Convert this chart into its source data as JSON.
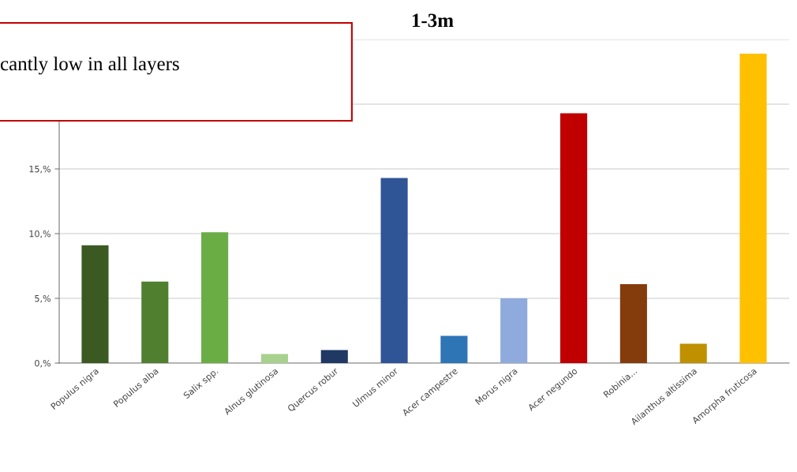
{
  "chart_data": {
    "type": "bar",
    "title": "1-3m",
    "categories": [
      "Populus nigra",
      "Populus alba",
      "Salix spp.",
      "Alnus glutinosa",
      "Quercus robur",
      "Ulmus minor",
      "Acer campestre",
      "Morus nigra",
      "Acer negundo",
      "Robinia...",
      "Ailanthus altissima",
      "Amorpha fruticosa"
    ],
    "values": [
      9.1,
      6.3,
      10.1,
      0.7,
      1.0,
      14.3,
      2.1,
      5.0,
      19.3,
      6.1,
      1.5,
      23.9
    ],
    "colors": [
      "#3a5a22",
      "#4f7f2f",
      "#6aad45",
      "#a9d18e",
      "#1f3864",
      "#2f5597",
      "#2e75b6",
      "#8faadc",
      "#c00000",
      "#843c0c",
      "#bf9000",
      "#ffc000"
    ],
    "ylim": [
      0,
      25
    ],
    "yticks": [
      {
        "value": 0,
        "label": "0,%"
      },
      {
        "value": 5,
        "label": "5,%"
      },
      {
        "value": 10,
        "label": "10,%"
      },
      {
        "value": 15,
        "label": "15,%"
      },
      {
        "value": 20,
        "label": null
      },
      {
        "value": 25,
        "label": null
      }
    ],
    "grid": "y",
    "annotations": [
      "cantly low in all layers"
    ]
  }
}
